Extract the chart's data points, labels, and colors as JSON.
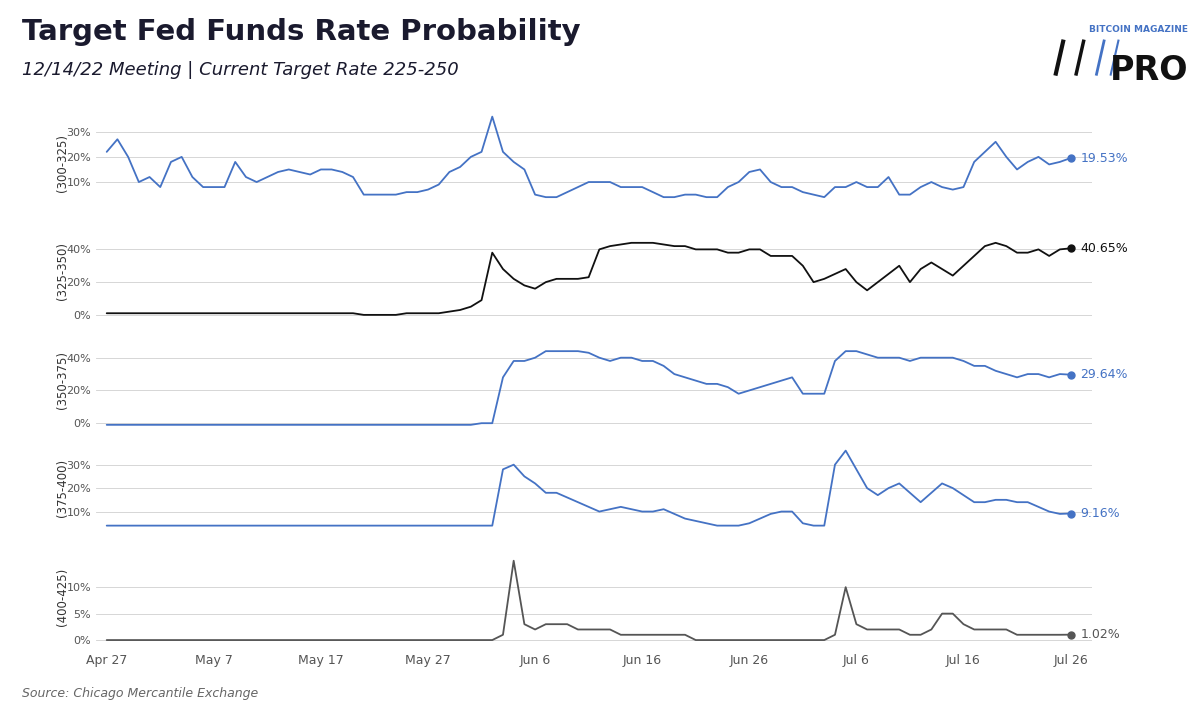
{
  "title": "Target Fed Funds Rate Probability",
  "subtitle": "12/14/22 Meeting | Current Target Rate 225-250",
  "source": "Source: Chicago Mercantile Exchange",
  "subplots": [
    {
      "label": "(300-325)",
      "color": "#4472c4",
      "end_value": "19.53%",
      "yticks": [
        10,
        20,
        30
      ],
      "ytick_labels": [
        "10%",
        "20%",
        "30%"
      ],
      "ylim": [
        -3,
        38
      ]
    },
    {
      "label": "(325-350)",
      "color": "#111111",
      "end_value": "40.65%",
      "yticks": [
        0,
        20,
        40
      ],
      "ytick_labels": [
        "0%",
        "20%",
        "40%"
      ],
      "ylim": [
        -5,
        58
      ]
    },
    {
      "label": "(350-375)",
      "color": "#4472c4",
      "end_value": "29.64%",
      "yticks": [
        0,
        20,
        40
      ],
      "ytick_labels": [
        "0%",
        "20%",
        "40%"
      ],
      "ylim": [
        -5,
        58
      ]
    },
    {
      "label": "(375-400)",
      "color": "#4472c4",
      "end_value": "9.16%",
      "yticks": [
        10,
        20,
        30
      ],
      "ytick_labels": [
        "10%",
        "20%",
        "30%"
      ],
      "ylim": [
        -2,
        42
      ]
    },
    {
      "label": "(400-425)",
      "color": "#555555",
      "end_value": "1.02%",
      "yticks": [
        0,
        5,
        10
      ],
      "ytick_labels": [
        "0%",
        "5%",
        "10%"
      ],
      "ylim": [
        -1.5,
        18
      ]
    }
  ],
  "blue_color": "#4472c4",
  "dark_color": "#111111",
  "gray_color": "#555555",
  "background_color": "#ffffff",
  "grid_color": "#d0d0d0",
  "title_color": "#1a1a2e",
  "x_tick_labels": [
    "Apr 27",
    "May 7",
    "May 17",
    "May 27",
    "Jun 6",
    "Jun 16",
    "Jun 26",
    "Jul 6",
    "Jul 16",
    "Jul 26"
  ],
  "x_tick_positions": [
    0,
    10,
    20,
    30,
    40,
    50,
    60,
    70,
    80,
    90
  ],
  "series1": [
    22,
    27,
    20,
    10,
    12,
    8,
    18,
    20,
    12,
    8,
    8,
    8,
    18,
    12,
    10,
    12,
    14,
    15,
    14,
    13,
    15,
    15,
    14,
    12,
    5,
    5,
    5,
    5,
    6,
    6,
    7,
    9,
    14,
    16,
    20,
    22,
    36,
    22,
    18,
    15,
    5,
    4,
    4,
    6,
    8,
    10,
    10,
    10,
    8,
    8,
    8,
    6,
    4,
    4,
    5,
    5,
    4,
    4,
    8,
    10,
    14,
    15,
    10,
    8,
    8,
    6,
    5,
    4,
    8,
    8,
    10,
    8,
    8,
    12,
    5,
    5,
    8,
    10,
    8,
    7,
    8,
    18,
    22,
    26,
    20,
    15,
    18,
    20,
    17,
    18,
    19.53
  ],
  "series2": [
    1,
    1,
    1,
    1,
    1,
    1,
    1,
    1,
    1,
    1,
    1,
    1,
    1,
    1,
    1,
    1,
    1,
    1,
    1,
    1,
    1,
    1,
    1,
    1,
    0,
    0,
    0,
    0,
    1,
    1,
    1,
    1,
    2,
    3,
    5,
    9,
    38,
    28,
    22,
    18,
    16,
    20,
    22,
    22,
    22,
    23,
    40,
    42,
    43,
    44,
    44,
    44,
    43,
    42,
    42,
    40,
    40,
    40,
    38,
    38,
    40,
    40,
    36,
    36,
    36,
    30,
    20,
    22,
    25,
    28,
    20,
    15,
    20,
    25,
    30,
    20,
    28,
    32,
    28,
    24,
    30,
    36,
    42,
    44,
    42,
    38,
    38,
    40,
    36,
    40,
    40.65
  ],
  "series3": [
    -1,
    -1,
    -1,
    -1,
    -1,
    -1,
    -1,
    -1,
    -1,
    -1,
    -1,
    -1,
    -1,
    -1,
    -1,
    -1,
    -1,
    -1,
    -1,
    -1,
    -1,
    -1,
    -1,
    -1,
    -1,
    -1,
    -1,
    -1,
    -1,
    -1,
    -1,
    -1,
    -1,
    -1,
    -1,
    0,
    0,
    28,
    38,
    38,
    40,
    44,
    44,
    44,
    44,
    43,
    40,
    38,
    40,
    40,
    38,
    38,
    35,
    30,
    28,
    26,
    24,
    24,
    22,
    18,
    20,
    22,
    24,
    26,
    28,
    18,
    18,
    18,
    38,
    44,
    44,
    42,
    40,
    40,
    40,
    38,
    40,
    40,
    40,
    40,
    38,
    35,
    35,
    32,
    30,
    28,
    30,
    30,
    28,
    30,
    29.64
  ],
  "series4": [
    4,
    4,
    4,
    4,
    4,
    4,
    4,
    4,
    4,
    4,
    4,
    4,
    4,
    4,
    4,
    4,
    4,
    4,
    4,
    4,
    4,
    4,
    4,
    4,
    4,
    4,
    4,
    4,
    4,
    4,
    4,
    4,
    4,
    4,
    4,
    4,
    4,
    28,
    30,
    25,
    22,
    18,
    18,
    16,
    14,
    12,
    10,
    11,
    12,
    11,
    10,
    10,
    11,
    9,
    7,
    6,
    5,
    4,
    4,
    4,
    5,
    7,
    9,
    10,
    10,
    5,
    4,
    4,
    30,
    36,
    28,
    20,
    17,
    20,
    22,
    18,
    14,
    18,
    22,
    20,
    17,
    14,
    14,
    15,
    15,
    14,
    14,
    12,
    10,
    9,
    9.16
  ],
  "series5": [
    0,
    0,
    0,
    0,
    0,
    0,
    0,
    0,
    0,
    0,
    0,
    0,
    0,
    0,
    0,
    0,
    0,
    0,
    0,
    0,
    0,
    0,
    0,
    0,
    0,
    0,
    0,
    0,
    0,
    0,
    0,
    0,
    0,
    0,
    0,
    0,
    0,
    1,
    15,
    3,
    2,
    3,
    3,
    3,
    2,
    2,
    2,
    2,
    1,
    1,
    1,
    1,
    1,
    1,
    1,
    0,
    0,
    0,
    0,
    0,
    0,
    0,
    0,
    0,
    0,
    0,
    0,
    0,
    1,
    10,
    3,
    2,
    2,
    2,
    2,
    1,
    1,
    2,
    5,
    5,
    3,
    2,
    2,
    2,
    2,
    1,
    1,
    1,
    1,
    1,
    1.02
  ]
}
